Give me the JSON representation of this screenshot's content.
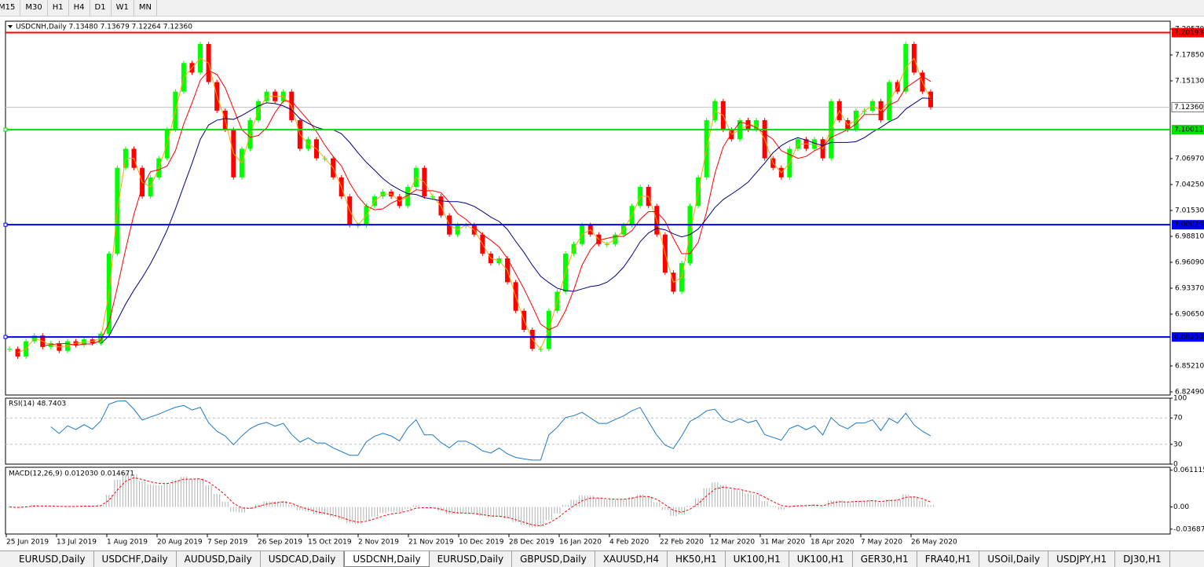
{
  "toolbar": {
    "timeframes": [
      "M15",
      "M30",
      "H1",
      "H4",
      "D1",
      "W1",
      "MN"
    ]
  },
  "chart": {
    "header": "USDCNH,Daily  7.13480 7.13679 7.12264 7.12360",
    "ylim": [
      6.8216,
      7.2139
    ],
    "yticks": [
      {
        "value": 7.2057,
        "label": "7.20570"
      },
      {
        "value": 7.1785,
        "label": "7.17850"
      },
      {
        "value": 7.1513,
        "label": "7.15130"
      },
      {
        "value": 7.0697,
        "label": "7.06970"
      },
      {
        "value": 7.0425,
        "label": "7.04250"
      },
      {
        "value": 7.0153,
        "label": "7.01530"
      },
      {
        "value": 6.9881,
        "label": "6.98810"
      },
      {
        "value": 6.9609,
        "label": "6.96090"
      },
      {
        "value": 6.9337,
        "label": "6.93370"
      },
      {
        "value": 6.9065,
        "label": "6.90650"
      },
      {
        "value": 6.8521,
        "label": "6.85210"
      },
      {
        "value": 6.8249,
        "label": "6.82490"
      }
    ],
    "current": {
      "value": 7.1236,
      "label": "7.12360"
    },
    "levels": [
      {
        "value": 7.20193,
        "label": "7.20193",
        "color": "#ff0000"
      },
      {
        "value": 7.10011,
        "label": "7.10011",
        "color": "#00e000"
      },
      {
        "value": 7.00029,
        "label": "7.00029",
        "color": "#0000ff"
      },
      {
        "value": 6.8825,
        "label": "6.88250",
        "color": "#0000ff"
      }
    ],
    "up_color": "#00ff00",
    "down_color": "#ff0000",
    "closes": [
      6.87,
      6.862,
      6.878,
      6.884,
      6.872,
      6.876,
      6.868,
      6.878,
      6.874,
      6.88,
      6.876,
      6.886,
      6.97,
      7.06,
      7.08,
      7.06,
      7.03,
      7.05,
      7.07,
      7.1,
      7.14,
      7.17,
      7.16,
      7.19,
      7.15,
      7.12,
      7.1,
      7.05,
      7.08,
      7.11,
      7.13,
      7.14,
      7.13,
      7.14,
      7.11,
      7.08,
      7.09,
      7.07,
      7.07,
      7.05,
      7.03,
      7.0,
      7.0,
      7.02,
      7.03,
      7.035,
      7.03,
      7.02,
      7.04,
      7.06,
      7.03,
      7.03,
      7.01,
      6.99,
      7.0,
      7.0,
      6.99,
      6.97,
      6.96,
      6.965,
      6.94,
      6.91,
      6.89,
      6.87,
      6.87,
      6.91,
      6.93,
      6.97,
      6.98,
      7.0,
      6.99,
      6.98,
      6.98,
      6.99,
      7.0,
      7.02,
      7.04,
      7.02,
      6.99,
      6.95,
      6.93,
      6.96,
      7.02,
      7.05,
      7.11,
      7.13,
      7.1,
      7.09,
      7.11,
      7.1,
      7.11,
      7.07,
      7.06,
      7.05,
      7.08,
      7.09,
      7.08,
      7.09,
      7.07,
      7.13,
      7.11,
      7.1,
      7.12,
      7.12,
      7.13,
      7.11,
      7.15,
      7.14,
      7.19,
      7.16,
      7.14,
      7.1236
    ],
    "dates": [
      "25 Jun 2019",
      "13 Jul 2019",
      "1 Aug 2019",
      "20 Aug 2019",
      "7 Sep 2019",
      "26 Sep 2019",
      "15 Oct 2019",
      "2 Nov 2019",
      "21 Nov 2019",
      "10 Dec 2019",
      "28 Dec 2019",
      "16 Jan 2020",
      "4 Feb 2020",
      "22 Feb 2020",
      "12 Mar 2020",
      "31 Mar 2020",
      "18 Apr 2020",
      "7 May 2020",
      "26 May 2020"
    ],
    "rsi": {
      "label": "RSI(14) 48.7403",
      "ylim": [
        0,
        100
      ],
      "yticks": [
        100,
        70,
        30,
        0
      ]
    },
    "macd": {
      "label": "MACD(12,26,9) 0.012030 0.014671",
      "ylim": [
        -0.045,
        0.066
      ],
      "yticks": [
        0.061115,
        {
          "value": 0,
          "label": "0.00"
        },
        -0.03687
      ]
    }
  },
  "tabs": [
    "EURUSD,Daily",
    "USDCHF,Daily",
    "AUDUSD,Daily",
    "USDCAD,Daily",
    "USDCNH,Daily",
    "EURUSD,Daily",
    "GBPUSD,Daily",
    "XAUUSD,H4",
    "HK50,H1",
    "UK100,H1",
    "UK100,H1",
    "GER30,H1",
    "FRA40,H1",
    "USOil,Daily",
    "USDJPY,H1",
    "DJ30,H1"
  ],
  "active_tab": 4
}
